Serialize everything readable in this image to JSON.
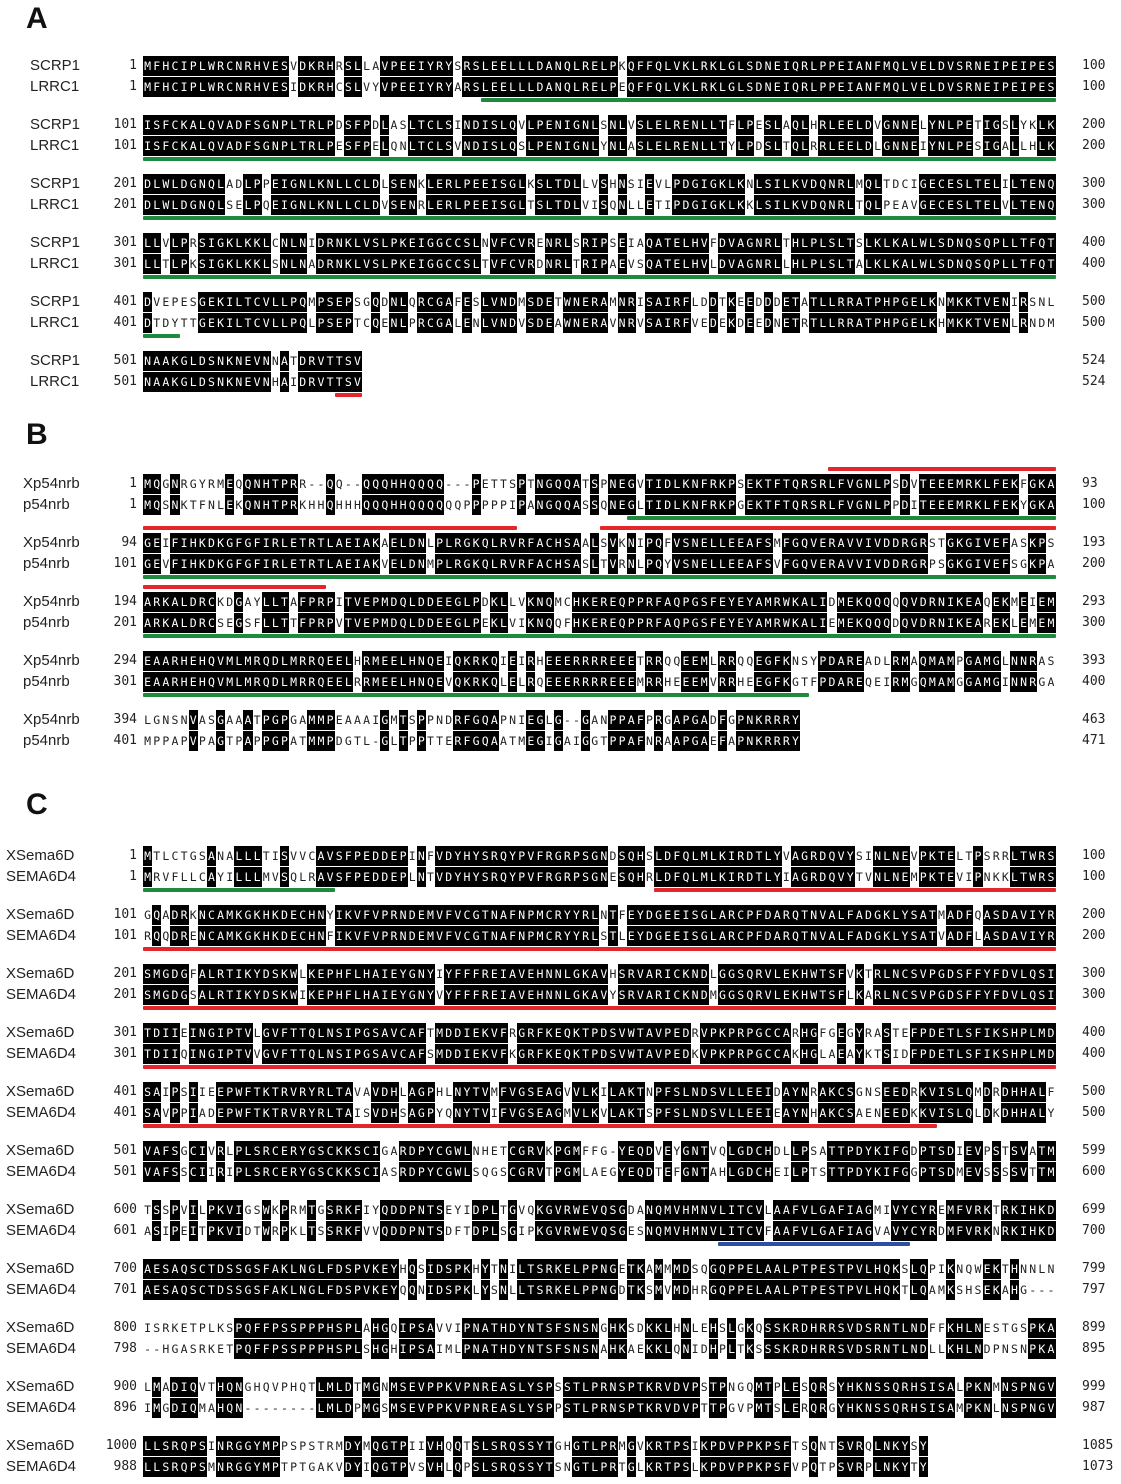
{
  "colors": {
    "identical_bg": "#000000",
    "identical_fg": "#ffffff",
    "green": "#1f8a3e",
    "red": "#e2262c",
    "blue": "#2d4ea3"
  },
  "panels": [
    {
      "label": "A",
      "blocks": [
        {
          "rows": [
            {
              "name": "SCRP1",
              "start": "1",
              "seq": "MFHCIPLWRCNRHVESVDKRHRSLLAVPEEIYRYSRSLEELLLDANQLRELPKQFFQLVKLRKLGLSDNEIQRLPPEIANFMQLVELDVSRNEIPEIPES",
              "end": "100"
            },
            {
              "name": "LRRC1",
              "start": "1",
              "seq": "MFHCIPLWRCNRHVESIDKRHCSLVYVPEEIYRYARSLEELLLDANQLRELPEQFFQLVKLRKLGLSDNEIQRLPPEIANFMQLVELDVSRNEIPEIPES",
              "end": "100"
            }
          ],
          "marks": [
            {
              "pos": "below",
              "color": "green",
              "from": 38,
              "to": 100
            }
          ]
        },
        {
          "rows": [
            {
              "name": "SCRP1",
              "start": "101",
              "seq": "ISFCKALQVADFSGNPLTRLPDSFPDLASLTCLSINDISLQVLPENIGNLSNLVSLELRENLLTFLPESLAQLHRLEELDVGNNELYNLPETIGSLYKLK",
              "end": "200"
            },
            {
              "name": "LRRC1",
              "start": "101",
              "seq": "ISFCKALQVADFSGNPLTRLPESFPELQNLTCLSVNDISLQSLPENIGNLYNLASLELRENLLTYLPDSLTQLRRLEELDLGNNEIYNLPESIGALLHLK",
              "end": "200"
            }
          ],
          "marks": [
            {
              "pos": "below",
              "color": "green",
              "from": 1,
              "to": 100
            }
          ]
        },
        {
          "rows": [
            {
              "name": "SCRP1",
              "start": "201",
              "seq": "DLWLDGNQLADLPPEIGNLKNLLCLDLSENKLERLPEEISGLKSLTDLLVSHNSIEVLPDGIGKLKNLSILKVDQNRLMQLTDCIGECESLTELILTENQ",
              "end": "300"
            },
            {
              "name": "LRRC1",
              "start": "201",
              "seq": "DLWLDGNQLSELPQEIGNLKNLLCLDVSENRLERLPEEISGLTSLTDLVISQNLLETIPDGIGKLKKLSILKVDQNRLTQLPEAVGECESLTELVLTENQ",
              "end": "300"
            }
          ],
          "marks": [
            {
              "pos": "below",
              "color": "green",
              "from": 1,
              "to": 100
            }
          ]
        },
        {
          "rows": [
            {
              "name": "SCRP1",
              "start": "301",
              "seq": "LLVLPRSIGKLKKLCNLNIDRNKLVSLPKEIGGCCSLNVFCVRENRLSRIPSEIAQATELHVFDVAGNRLTHLPLSLTSLKLKALWLSDNQSQPLLTFQT",
              "end": "400"
            },
            {
              "name": "LRRC1",
              "start": "301",
              "seq": "LLTLPKSIGKLKKLSNLNADRNKLVSLPKEIGGCCSLTVFCVRDNRLTRIPAEVSQATELHVLDVAGNRLLHLPLSLTALKLKALWLSDNQSQPLLTFQT",
              "end": "400"
            }
          ],
          "marks": [
            {
              "pos": "below",
              "color": "green",
              "from": 1,
              "to": 100
            }
          ]
        },
        {
          "rows": [
            {
              "name": "SCRP1",
              "start": "401",
              "seq": "DVEPESGEKILTCVLLPQMPSEPSGQDNLQRCGAFESLVNDMSDETWNERAMNRISAIRFLDDTKEEDDDETATLLRRATPHPGELKNMKKTVENIRSNL",
              "end": "500"
            },
            {
              "name": "LRRC1",
              "start": "401",
              "seq": "DTDYTTGEKILTCVLLPQLPSEPTCQENLPRCGALENLVNDVSDEAWNERAVNRVSAIRFVEDEKDEEDNETRTLLRRATPHPGELKHMKKTVENLRNDM",
              "end": "500"
            }
          ],
          "marks": [
            {
              "pos": "below",
              "color": "green",
              "from": 1,
              "to": 4
            }
          ]
        },
        {
          "rows": [
            {
              "name": "SCRP1",
              "start": "501",
              "seq": "NAAKGLDSNKNEVNNATDRVTTSV",
              "end": "524"
            },
            {
              "name": "LRRC1",
              "start": "501",
              "seq": "NAAKGLDSNKNEVNHAIDRVTTSV",
              "end": "524"
            }
          ],
          "marks": [
            {
              "pos": "below",
              "color": "red",
              "from": 22,
              "to": 24
            }
          ]
        }
      ]
    },
    {
      "label": "B",
      "blocks": [
        {
          "rows": [
            {
              "name": "Xp54nrb",
              "start": "1",
              "seq": "MQGNRGYRMEQQNHTPRR--QQ--QQQHHQQQQ---PETTSPTNGQQATSPNEGVTIDLKNFRKPSEKTFTQRSRLFVGNLPSDVTEEEMRKLFEKFGKA",
              "end": "93"
            },
            {
              "name": "p54nrb",
              "start": "1",
              "seq": "MQSNKTFNLEKQNHTPRKHHQHHHQQQHHQQQQQQPPPPPIPANGQQASSQNEGLTIDLKNFRKPGEKTFTQRSRLFVGNLPPDITEEEMRKLFEKYGKA",
              "end": "100"
            }
          ],
          "marks": [
            {
              "pos": "above",
              "color": "red",
              "from": 76,
              "to": 100
            },
            {
              "pos": "below",
              "color": "green",
              "from": 54,
              "to": 100
            }
          ]
        },
        {
          "rows": [
            {
              "name": "Xp54nrb",
              "start": "94",
              "seq": "GEIFIHKDKGFGFIRLETRTLAEIAKAELDNLPLRGKQLRVRFACHSAALSVKNIPQFVSNELLEEAFSMFGQVERAVVIVDDRGRSTGKGIVEFASKPS",
              "end": "193"
            },
            {
              "name": "p54nrb",
              "start": "101",
              "seq": "GEVFIHKDKGFGFIRLETRTLAEIAKVELDNMPLRGKQLRVRFACHSASLTVRNLPQYVSNELLEEAFSVFGQVERAVVIVDDRGRPSGKGIVEFSGKPA",
              "end": "200"
            }
          ],
          "marks": [
            {
              "pos": "above",
              "color": "red",
              "from": 1,
              "to": 41
            },
            {
              "pos": "above",
              "color": "red",
              "from": 51,
              "to": 100
            },
            {
              "pos": "below",
              "color": "green",
              "from": 1,
              "to": 100
            }
          ]
        },
        {
          "rows": [
            {
              "name": "Xp54nrb",
              "start": "194",
              "seq": "ARKALDRCKDGAYLLTAFPRPITVEPMDQLDDEEGLPDKLLVKNQMCHKEREQPPRFAQPGSFEYEYAMRWKALIDMEKQQQQQVDRNIKEAQEKMEIEM",
              "end": "293"
            },
            {
              "name": "p54nrb",
              "start": "201",
              "seq": "ARKALDRCSEGSFLLTTFPRPVTVEPMDQLDDEEGLPEKLVIKNQQFHKEREQPPRFAQPGSFEYEYAMRWKALIEMEKQQQDQVDRNIKEAREKLEMEM",
              "end": "300"
            }
          ],
          "marks": [
            {
              "pos": "above",
              "color": "red",
              "from": 1,
              "to": 20
            },
            {
              "pos": "below",
              "color": "green",
              "from": 1,
              "to": 100
            }
          ]
        },
        {
          "rows": [
            {
              "name": "Xp54nrb",
              "start": "294",
              "seq": "EAARHEHQVMLMRQDLMRRQEELHRMEELHNQEIQKRKQIEIRHEEERRRREEETRRQQEEMLRRQQEGFKNSYPDAREADLRMAQMAMPGAMGLNNRAS",
              "end": "393"
            },
            {
              "name": "p54nrb",
              "start": "301",
              "seq": "EAARHEHQVMLMRQDLMRRQEELRRMEELHNQEVQKRKQLELRQEEERRRREEEMRRHEEEMVRRHEEGFKGTFPDAREQEIRMGQMAMGGAMGINNRGA",
              "end": "400"
            }
          ],
          "marks": [
            {
              "pos": "below",
              "color": "green",
              "from": 1,
              "to": 73
            }
          ]
        },
        {
          "rows": [
            {
              "name": "Xp54nrb",
              "start": "394",
              "seq": "LGNSNVASGAAATPGPGAMMPEAAAIGMTSPPNDRFGQAPNIEGLG--GANPPAFPRGAPGADFGPNKRRRY",
              "end": "463"
            },
            {
              "name": "p54nrb",
              "start": "401",
              "seq": "MPPAPVPAGTPAPPGPATMMPDGTL-GLTPPTTERFGQAATMEGIGAIGGTPPAFNRAAPGAEFAPNKRRRY",
              "end": "471"
            }
          ],
          "marks": []
        }
      ]
    },
    {
      "label": "C",
      "blocks": [
        {
          "rows": [
            {
              "name": "XSema6D",
              "start": "1",
              "seq": "MTLCTGSANALLLTISVVCAVSFPEDDEPINFVDYHYSRQYPVFRGRPSGNDSQHSLDFQLMLKIRDTLYVAGRDQVYSINLNEVPKTELTPSRRLTWRS",
              "end": "100"
            },
            {
              "name": "SEMA6D4",
              "start": "1",
              "seq": "MRVFLLCAYILLLMVSQLRAVSFPEDDEPLNTVDYHYSRQYPVFRGRPSGNESQHRLDFQLMLKIRDTLYIAGRDQVYTVNLNEMPKTEVIPNKKLTWRS",
              "end": "100"
            }
          ],
          "marks": [
            {
              "pos": "below",
              "color": "green",
              "from": 1,
              "to": 21
            },
            {
              "pos": "below",
              "color": "red",
              "from": 57,
              "to": 100
            }
          ]
        },
        {
          "rows": [
            {
              "name": "XSema6D",
              "start": "101",
              "seq": "GQADRKNCAMKGKHKDECHNYIKVFVPRNDEMVFVCGTNAFNPMCRYYRLNTFEYDGEEISGLARCPFDARQTNVALFADGKLYSATMADFQASDAVIYR",
              "end": "200"
            },
            {
              "name": "SEMA6D4",
              "start": "101",
              "seq": "RQQDRENCAMKGKHKDECHNFIKVFVPRNDEMVFVCGTNAFNPMCRYYRLSTLEYDGEEISGLARCPFDARQTNVALFADGKLYSATVADFLASDAVIYR",
              "end": "200"
            }
          ],
          "marks": [
            {
              "pos": "below",
              "color": "red",
              "from": 1,
              "to": 100
            }
          ]
        },
        {
          "rows": [
            {
              "name": "XSema6D",
              "start": "201",
              "seq": "SMGDGFALRTIKYDSKWLKEPHFLHAIEYGNYIYFFFREIAVEHNNLGKAVHSRVARICKNDLGGSQRVLEKHWTSFVKTRLNCSVPGDSFFYFDVLQSI",
              "end": "300"
            },
            {
              "name": "SEMA6D4",
              "start": "201",
              "seq": "SMGDGSALRTIKYDSKWIKEPHFLHAIEYGNYVYFFFREIAVEHNNLGKAVYSRVARICKNDMGGSQRVLEKHWTSFLKARLNCSVPGDSFFYFDVLQSI",
              "end": "300"
            }
          ],
          "marks": [
            {
              "pos": "below",
              "color": "red",
              "from": 1,
              "to": 100
            }
          ]
        },
        {
          "rows": [
            {
              "name": "XSema6D",
              "start": "301",
              "seq": "TDIIEINGIPTVLGVFTTQLNSIPGSAVCAFTMDDIEKVFRGRFKEQKTPDSVWTAVPEDRVPKPRPGCCARHGFGEGYRASTEFPDETLSFIKSHPLMD",
              "end": "400"
            },
            {
              "name": "SEMA6D4",
              "start": "301",
              "seq": "TDIIQINGIPTVVGVFTTQLNSIPGSAVCAFSMDDIEKVFKGRFKEQKTPDSVWTAVPEDKVPKPRPGCCAKHGLAEAYKTSIDFPDETLSFIKSHPLMD",
              "end": "400"
            }
          ],
          "marks": [
            {
              "pos": "below",
              "color": "red",
              "from": 1,
              "to": 100
            }
          ]
        },
        {
          "rows": [
            {
              "name": "XSema6D",
              "start": "401",
              "seq": "SAIPSIIEEPWFTKTRVRYRLTAVAVDHLAGPHLNYTVMFVGSEAGVVLKILAKTNPFSLNDSVLLEEIDAYNRAKCSGNSEEDRKVISLQMDRDHHALF",
              "end": "500"
            },
            {
              "name": "SEMA6D4",
              "start": "401",
              "seq": "SAVPPIADEPWFTKTRVRYRLTAISVDHSAGPYQNYTVIFVGSEAGMVLKVLAKTSPFSLNDSVLLEEIEAYNHAKCSAENEEDKKVISLQLDKDHHALY",
              "end": "500"
            }
          ],
          "marks": [
            {
              "pos": "below",
              "color": "red",
              "from": 1,
              "to": 87
            }
          ]
        },
        {
          "rows": [
            {
              "name": "XSema6D",
              "start": "501",
              "seq": "VAFSGCIVRLPLSRCERYGSCKKSCIGARDPYCGWLNHETCGRVKPGMFFG-YEQDVEYGNTVQLGDCHDLLPSATTPDYKIFGDPTSDIEVPSTSVATM",
              "end": "599"
            },
            {
              "name": "SEMA6D4",
              "start": "501",
              "seq": "VAFSSCIIRIPLSRCERYGSCKKSCIASRDPYCGWLSQGSCGRVTPGMLAEGYEQDTEFGNTAHLGDCHEILPTSTTPDYKIFGGPTSDMEVSSSSVTTM",
              "end": "600"
            }
          ],
          "marks": []
        },
        {
          "rows": [
            {
              "name": "XSema6D",
              "start": "600",
              "seq": "TSSPVILPKVIGSWKPRMTGSRKFIYQDDPNTSEYIDPLTGVQKGVRWEVQSGDANQMVHMNVLITCVLAAFVLGAFIAGMIVYCYREMFVRKTRKIHKD",
              "end": "699"
            },
            {
              "name": "SEMA6D4",
              "start": "601",
              "seq": "ASIPEITPKVIDTWRPKLTSSRKFVVQDDPNTSDFTDPLSGIPKGVRWEVQSGESNQMVHMNVLITCVFAAFVLGAFIAGVAVYCYRDMFVRKNRKIHKD",
              "end": "700"
            }
          ],
          "marks": [
            {
              "pos": "below",
              "color": "blue",
              "from": 64,
              "to": 84
            }
          ]
        },
        {
          "rows": [
            {
              "name": "XSema6D",
              "start": "700",
              "seq": "AESAQSCTDSSGSFAKLNGLFDSPVKEYHQSIDSPKHYTNILTSRKELPPNGETKAMMMDSQGQPPELAALPTPESTPVLHQKSLQPIKNQWEKTHNNLN",
              "end": "799"
            },
            {
              "name": "SEMA6D4",
              "start": "701",
              "seq": "AESAQSCTDSSGSFAKLNGLFDSPVKEYQQNIDSPKLYSNLLTSRKELPPNGDTKSMVMDHRGQPPELAALPTPESTPVLHQKTLQAMKSHSEKAHG---",
              "end": "797"
            }
          ],
          "marks": []
        },
        {
          "rows": [
            {
              "name": "XSema6D",
              "start": "800",
              "seq": "ISRKETPLKSPQFFPSSPPPHSPLAHGQIPSAVVIPNATHDYNTSFSNSNGHKSDKKLHNLEHSLGKQSSKRDHRRSVDSRNTLNDFFKHLNESTGSPKA",
              "end": "899"
            },
            {
              "name": "SEMA6D4",
              "start": "798",
              "seq": "--HGASRKETPQFFPSSPPPHSPLSHGHIPSAIMLPNATHDYNTSFSNSNAHKAEKKLQNIDHPLTKSSSKRDHRRSVDSRNTLNDLLKHLNDPNSNPKA",
              "end": "895"
            }
          ],
          "marks": []
        },
        {
          "rows": [
            {
              "name": "XSema6D",
              "start": "900",
              "seq": "LMADIQVTHQNGHQVPHQTLMLDTMGNMSEVPPKVPNREASLYSPSSTLPRNSPTKRVDVPSTPNGQMTPLESQRSYHKNSSQRHSISALPKNMNSPNGV",
              "end": "999"
            },
            {
              "name": "SEMA6D4",
              "start": "896",
              "seq": "IMGDIQMAHQN--------LMLDPMGSMSEVPPKVPNREASLYSPPSTLPRNSPTKRVDVPTTPGVPMTSLERQRGYHKNSSQRHSISAMPKNLNSPNGV",
              "end": "987"
            }
          ],
          "marks": []
        },
        {
          "rows": [
            {
              "name": "XSema6D",
              "start": "1000",
              "seq": "LLSRQPSINRGGYMPPSPSTRMDYMQGTPIIVHQQTSLSRQSSYTGHGTLPRMGVKRTPSIKPDVPPKPSFTSQNTSVRQLNKYSY",
              "end": "1085"
            },
            {
              "name": "SEMA6D4",
              "start": "988",
              "seq": "LLSRQPSMNRGGYMPTPTGAKVDYIQGTPVSVHLQPSLSRQSSYTSNGTLPRTGLKRTPSLKPDVPPKPSFVPQTPSVRPLNKYTY",
              "end": "1073"
            }
          ],
          "marks": []
        }
      ]
    }
  ]
}
